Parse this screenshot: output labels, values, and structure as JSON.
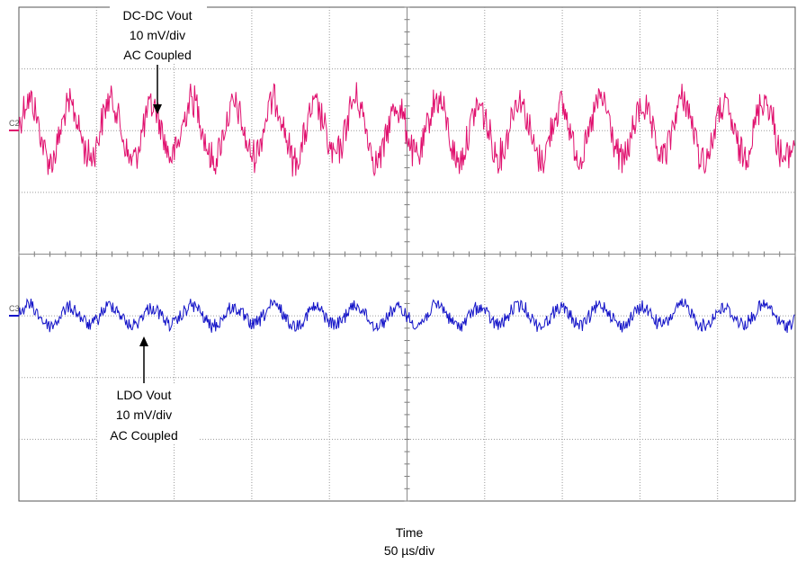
{
  "chart_data": {
    "type": "line",
    "title": "",
    "grid": true,
    "divisions": {
      "horizontal": 10,
      "vertical": 8
    },
    "xlabel": "Time",
    "xscale": "50 µs/div",
    "series": [
      {
        "name": "DC-DC Vout",
        "channel": "C2",
        "color": "#e0106e",
        "scale": "10 mV/div",
        "coupling": "AC Coupled",
        "offset_div": 2,
        "ripple_pp_div": 0.9,
        "ripple_periods_across_screen": 19,
        "switching_noise_pp_div": 0.6
      },
      {
        "name": "LDO Vout",
        "channel": "C3",
        "color": "#1414c8",
        "scale": "10 mV/div",
        "coupling": "AC Coupled",
        "offset_div": -1,
        "ripple_pp_div": 0.3,
        "ripple_periods_across_screen": 19,
        "switching_noise_pp_div": 0.25
      }
    ],
    "annotations": [
      {
        "target": "C2",
        "lines": [
          "DC-DC Vout",
          "10 mV/div",
          "AC Coupled"
        ],
        "arrow": "down"
      },
      {
        "target": "C3",
        "lines": [
          "LDO Vout",
          "10 mV/div",
          "AC Coupled"
        ],
        "arrow": "up"
      }
    ],
    "x_axis_caption": [
      "Time",
      "50 µs/div"
    ]
  }
}
